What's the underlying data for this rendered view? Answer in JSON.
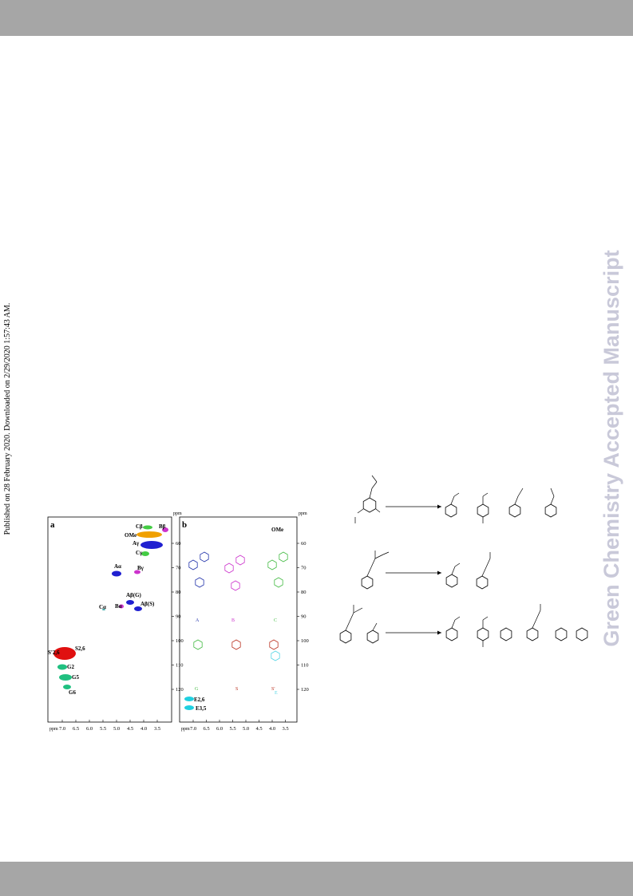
{
  "side_note": "Published on 28 February 2020. Downloaded on 2/29/2020 1:57:43 AM.",
  "watermark": "Green Chemistry Accepted Manuscript",
  "figure": {
    "panel_a": {
      "label": "a",
      "unit": "ppm",
      "x_ticks": [
        "7.0",
        "6.5",
        "6.0",
        "5.5",
        "5.0",
        "4.5",
        "4.0",
        "3.5"
      ],
      "y_ticks": [
        "60",
        "70",
        "80",
        "90",
        "100",
        "110",
        "120"
      ],
      "peaks": [
        "Cβ",
        "Bβ",
        "OMe",
        "Aγ",
        "Cγ",
        "Aα",
        "Bγ",
        "Aβ(G)",
        "Aβ(S)",
        "Cα",
        "Bα",
        "S'2,6",
        "S2,6",
        "G2",
        "G5",
        "G6"
      ]
    },
    "panel_b": {
      "label": "b",
      "unit": "ppm",
      "x_ticks": [
        "7.0",
        "6.5",
        "6.0",
        "5.5",
        "5.0",
        "4.5",
        "4.0",
        "3.5"
      ],
      "y_ticks": [
        "60",
        "70",
        "80",
        "90",
        "100",
        "110",
        "120"
      ],
      "peaks": [
        "OMe",
        "E2,6",
        "E3,5"
      ],
      "structures": [
        "A",
        "B",
        "C",
        "G",
        "S",
        "S'",
        "E"
      ]
    }
  }
}
